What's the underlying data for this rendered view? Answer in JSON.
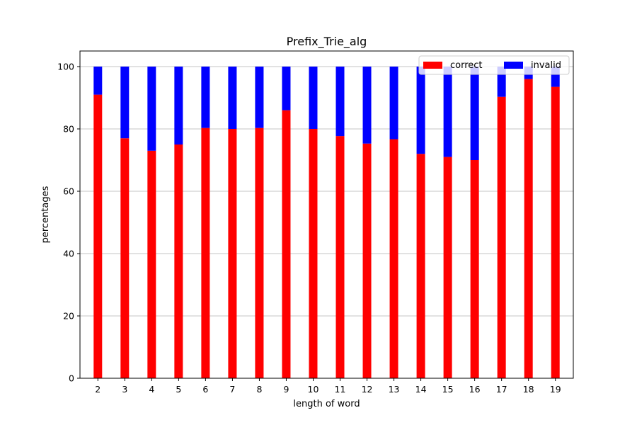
{
  "chart_data": {
    "type": "bar",
    "stacked": true,
    "title": "Prefix_Trie_alg",
    "xlabel": "length of word",
    "ylabel": "percentages",
    "categories": [
      "2",
      "3",
      "4",
      "5",
      "6",
      "7",
      "8",
      "9",
      "10",
      "11",
      "12",
      "13",
      "14",
      "15",
      "16",
      "17",
      "18",
      "19"
    ],
    "series": [
      {
        "name": "correct",
        "color": "#ff0000",
        "values": [
          91,
          77,
          73,
          75,
          80.3,
          80,
          80.3,
          86,
          80,
          77.7,
          75.3,
          76.7,
          72,
          71,
          70,
          90.3,
          96,
          93.5
        ]
      },
      {
        "name": "invalid",
        "color": "#0000ff",
        "values": [
          9,
          23,
          27,
          25,
          19.7,
          20,
          19.7,
          14,
          20,
          22.3,
          24.7,
          23.3,
          28,
          29,
          30,
          9.7,
          4,
          6.5
        ]
      }
    ],
    "ylim": [
      0,
      105
    ],
    "yticks": [
      0,
      20,
      40,
      60,
      80,
      100
    ],
    "grid": "y",
    "legend_position": "top-right",
    "legend_columns": 2
  }
}
